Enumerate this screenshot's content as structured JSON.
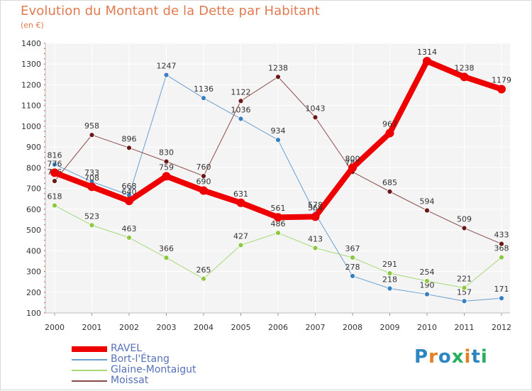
{
  "title": "Evolution du Montant de la Dette par Habitant",
  "unit": "(en €)",
  "brand": {
    "text": "Proxiti",
    "colors": [
      "#2e86c1",
      "#e67e22",
      "#2e86c1",
      "#27ae60",
      "#e67e22",
      "#2e86c1",
      "#27ae60"
    ]
  },
  "chart_data": {
    "type": "line",
    "title": "Evolution du Montant de la Dette par Habitant",
    "ylabel": "(en €)",
    "xlabel": "",
    "x": [
      "2000",
      "2001",
      "2002",
      "2003",
      "2004",
      "2005",
      "2006",
      "2007",
      "2008",
      "2009",
      "2010",
      "2011",
      "2012"
    ],
    "ylim": [
      100,
      1400
    ],
    "yticks": [
      100,
      200,
      300,
      400,
      500,
      600,
      700,
      800,
      900,
      1000,
      1100,
      1200,
      1300,
      1400
    ],
    "grid": true,
    "legend_position": "bottom-left",
    "series": [
      {
        "name": "Bort-l'Étang",
        "color": "#6a9fcf",
        "marker": "#3a7fc0",
        "width": 1,
        "values": [
          816,
          733,
          668,
          1247,
          1136,
          1036,
          934,
          578,
          278,
          218,
          190,
          157,
          171
        ],
        "labels": [
          "816",
          "733",
          "668",
          "1247",
          "1136",
          "1036",
          "934",
          "578",
          "278",
          "218",
          "190",
          "157",
          "171"
        ]
      },
      {
        "name": "Glaine-Montaigut",
        "color": "#a8d878",
        "marker": "#8cc840",
        "width": 1,
        "values": [
          618,
          523,
          463,
          366,
          265,
          427,
          486,
          413,
          367,
          291,
          254,
          221,
          368
        ],
        "labels": [
          "618",
          "523",
          "463",
          "366",
          "265",
          "427",
          "486",
          "413",
          "367",
          "291",
          "254",
          "221",
          "368"
        ]
      },
      {
        "name": "Moissat",
        "color": "#8a4a4a",
        "marker": "#6a1818",
        "width": 1,
        "values": [
          736,
          958,
          896,
          830,
          760,
          1122,
          1238,
          1043,
          780,
          685,
          594,
          509,
          433
        ],
        "labels": [
          "736",
          "958",
          "896",
          "830",
          "760",
          "1122",
          "1238",
          "1043",
          "780",
          "685",
          "594",
          "509",
          "433"
        ]
      },
      {
        "name": "RAVEL",
        "color": "#ee0000",
        "marker": "#ee0000",
        "width": 8,
        "values": [
          776,
          708,
          640,
          759,
          690,
          631,
          561,
          564,
          800,
          967,
          1314,
          1238,
          1179
        ],
        "labels": [
          "776",
          "708",
          "640",
          "759",
          "690",
          "631",
          "561",
          "564",
          "800",
          "967",
          "1314",
          "1238",
          "1179"
        ]
      }
    ],
    "legend_order": [
      "RAVEL",
      "Bort-l'Étang",
      "Glaine-Montaigut",
      "Moissat"
    ]
  }
}
